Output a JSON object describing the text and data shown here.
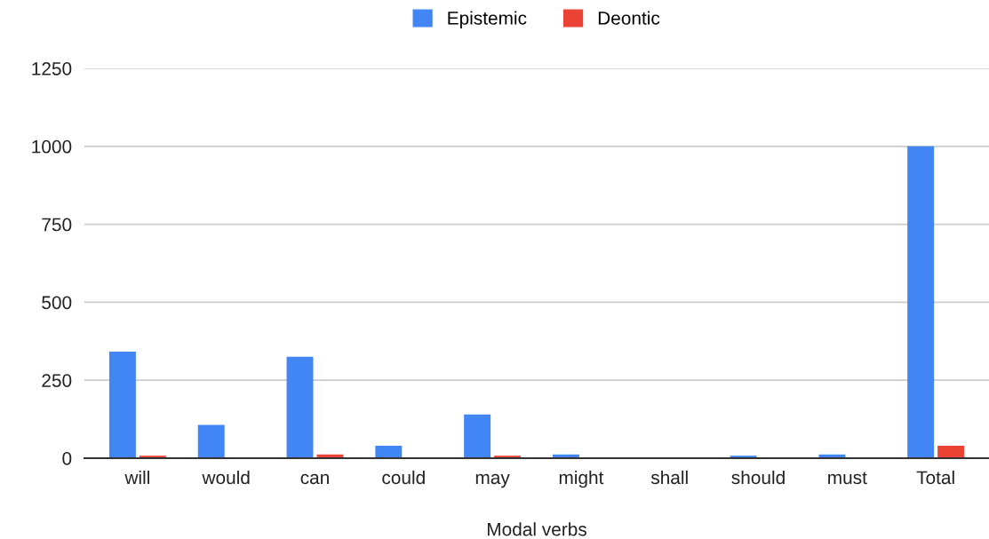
{
  "chart_data": {
    "type": "bar",
    "xlabel": "Modal verbs",
    "categories": [
      "will",
      "would",
      "can",
      "could",
      "may",
      "might",
      "shall",
      "should",
      "must",
      "Total"
    ],
    "series": [
      {
        "name": "Epistemic",
        "color": "#4285f4",
        "values": [
          342,
          107,
          325,
          40,
          140,
          12,
          0,
          8,
          12,
          1000
        ]
      },
      {
        "name": "Deontic",
        "color": "#ea4335",
        "values": [
          8,
          0,
          12,
          0,
          8,
          0,
          0,
          0,
          0,
          40
        ]
      }
    ],
    "ylim": [
      0,
      1250
    ],
    "yticks": [
      0,
      250,
      500,
      750,
      1000,
      1250
    ],
    "grid": "y",
    "legend": "top"
  }
}
